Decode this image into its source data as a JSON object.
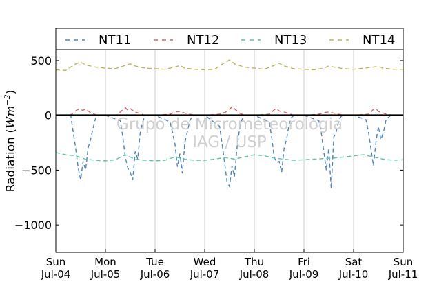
{
  "chart_data": {
    "type": "line",
    "ylabel": "Radiation (Wm⁻²)",
    "ylabel_main": "Radiation (",
    "ylabel_unit": "Wm",
    "ylabel_exp": "−2",
    "ylabel_close": ")",
    "xlim": [
      0,
      7
    ],
    "ylim": [
      -1250,
      600
    ],
    "yticks": [
      500,
      0,
      -500,
      -1000
    ],
    "ytick_labels": [
      "500",
      "0",
      "−500",
      "−1000"
    ],
    "xtick_days": [
      "Sun",
      "Mon",
      "Tue",
      "Wed",
      "Thu",
      "Fri",
      "Sat",
      "Sun"
    ],
    "xtick_dates": [
      "Jul-04",
      "Jul-05",
      "Jul-06",
      "Jul-07",
      "Jul-08",
      "Jul-09",
      "Jul-10",
      "Jul-11"
    ],
    "grid": "vertical",
    "legend_placement": "top",
    "watermark": [
      "Grupo de Micrometeorologia",
      "IAG / USP"
    ],
    "zero_line": 0,
    "series": [
      {
        "name": "NT11",
        "color": "#4f84b9",
        "x": [
          0.0,
          0.3,
          0.35,
          0.4,
          0.45,
          0.5,
          0.55,
          0.6,
          0.65,
          0.7,
          0.75,
          0.8,
          0.85,
          1.0,
          1.3,
          1.35,
          1.4,
          1.45,
          1.5,
          1.55,
          1.6,
          1.65,
          1.7,
          1.75,
          1.8,
          2.0,
          2.3,
          2.35,
          2.4,
          2.45,
          2.5,
          2.55,
          2.6,
          2.65,
          2.7,
          2.75,
          2.8,
          3.0,
          3.3,
          3.35,
          3.4,
          3.45,
          3.5,
          3.55,
          3.6,
          3.65,
          3.7,
          3.75,
          3.8,
          4.0,
          4.3,
          4.35,
          4.4,
          4.45,
          4.5,
          4.55,
          4.6,
          4.65,
          4.7,
          4.75,
          4.8,
          5.0,
          5.3,
          5.35,
          5.4,
          5.45,
          5.5,
          5.55,
          5.6,
          5.65,
          5.7,
          5.75,
          5.8,
          6.0,
          6.25,
          6.3,
          6.35,
          6.4,
          6.45,
          6.5,
          6.55,
          6.6,
          6.65,
          6.7,
          6.75,
          7.0
        ],
        "y": [
          0,
          0,
          -150,
          -300,
          -480,
          -590,
          -420,
          -500,
          -300,
          -220,
          -120,
          -30,
          0,
          0,
          -50,
          -200,
          -380,
          -480,
          -520,
          -590,
          -330,
          -400,
          -160,
          -60,
          0,
          0,
          -60,
          -150,
          -260,
          -470,
          -350,
          -530,
          -250,
          -150,
          -50,
          -10,
          0,
          0,
          -100,
          -260,
          -430,
          -610,
          -650,
          -460,
          -560,
          -300,
          -130,
          -40,
          0,
          0,
          -60,
          -200,
          -380,
          -430,
          -420,
          -520,
          -300,
          -220,
          -80,
          -20,
          0,
          0,
          -50,
          -160,
          -330,
          -500,
          -300,
          -670,
          -200,
          -150,
          -50,
          -10,
          0,
          0,
          -40,
          -150,
          -300,
          -460,
          -250,
          -100,
          -220,
          -160,
          -50,
          -20,
          0,
          0
        ]
      },
      {
        "name": "NT12",
        "color": "#d46466",
        "x": [
          0.0,
          0.3,
          0.35,
          0.4,
          0.45,
          0.5,
          0.55,
          0.6,
          0.65,
          0.7,
          0.8,
          1.0,
          1.25,
          1.3,
          1.35,
          1.4,
          1.45,
          1.5,
          1.6,
          1.7,
          1.8,
          2.0,
          2.3,
          2.4,
          2.5,
          2.6,
          2.7,
          2.8,
          3.0,
          3.3,
          3.4,
          3.5,
          3.55,
          3.6,
          3.65,
          3.7,
          3.8,
          4.0,
          4.3,
          4.35,
          4.4,
          4.45,
          4.5,
          4.6,
          4.7,
          4.8,
          5.0,
          5.3,
          5.4,
          5.5,
          5.6,
          5.7,
          5.8,
          6.0,
          6.3,
          6.35,
          6.4,
          6.45,
          6.5,
          6.6,
          6.7,
          7.0
        ],
        "y": [
          0,
          5,
          20,
          40,
          55,
          50,
          45,
          60,
          40,
          25,
          5,
          0,
          5,
          30,
          50,
          70,
          45,
          60,
          30,
          15,
          0,
          0,
          10,
          30,
          35,
          20,
          10,
          0,
          0,
          10,
          25,
          50,
          80,
          60,
          40,
          20,
          0,
          0,
          10,
          30,
          50,
          60,
          40,
          30,
          15,
          0,
          0,
          10,
          25,
          30,
          20,
          10,
          0,
          0,
          10,
          30,
          55,
          60,
          35,
          20,
          5,
          0
        ]
      },
      {
        "name": "NT13",
        "color": "#5ec4a2",
        "x": [
          0.0,
          0.2,
          0.4,
          0.6,
          0.8,
          1.0,
          1.2,
          1.4,
          1.6,
          1.8,
          2.0,
          2.2,
          2.4,
          2.6,
          2.8,
          3.0,
          3.2,
          3.4,
          3.6,
          3.8,
          4.0,
          4.2,
          4.4,
          4.6,
          4.8,
          5.0,
          5.2,
          5.4,
          5.6,
          5.8,
          6.0,
          6.2,
          6.4,
          6.6,
          6.8,
          7.0
        ],
        "y": [
          -340,
          -360,
          -370,
          -400,
          -410,
          -415,
          -405,
          -360,
          -400,
          -410,
          -415,
          -410,
          -380,
          -400,
          -410,
          -410,
          -400,
          -385,
          -400,
          -380,
          -360,
          -370,
          -390,
          -400,
          -410,
          -405,
          -400,
          -395,
          -390,
          -380,
          -370,
          -360,
          -380,
          -400,
          -410,
          -405
        ]
      },
      {
        "name": "NT14",
        "color": "#bdb55a",
        "x": [
          0.0,
          0.2,
          0.4,
          0.5,
          0.6,
          0.8,
          1.0,
          1.2,
          1.4,
          1.5,
          1.6,
          1.8,
          2.0,
          2.2,
          2.4,
          2.5,
          2.6,
          2.8,
          3.0,
          3.2,
          3.4,
          3.5,
          3.6,
          3.8,
          4.0,
          4.2,
          4.4,
          4.5,
          4.6,
          4.8,
          5.0,
          5.2,
          5.4,
          5.5,
          5.6,
          5.8,
          6.0,
          6.2,
          6.4,
          6.5,
          6.6,
          6.8,
          7.0
        ],
        "y": [
          415,
          410,
          470,
          485,
          460,
          440,
          430,
          425,
          455,
          470,
          450,
          430,
          425,
          420,
          440,
          455,
          430,
          420,
          415,
          420,
          480,
          505,
          470,
          440,
          430,
          420,
          455,
          475,
          450,
          425,
          420,
          415,
          430,
          450,
          440,
          425,
          420,
          430,
          440,
          445,
          430,
          420,
          420
        ]
      }
    ]
  }
}
